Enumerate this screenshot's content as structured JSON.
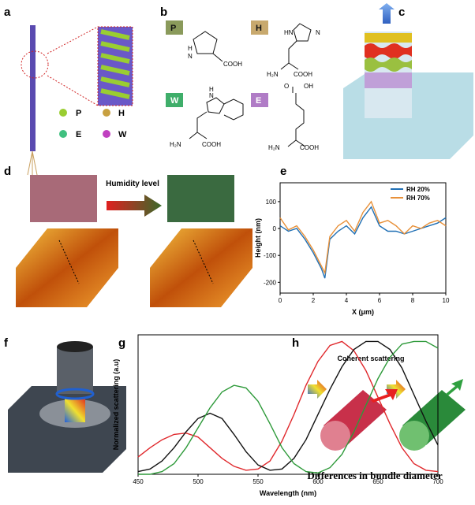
{
  "panel_labels": [
    "a",
    "b",
    "c",
    "d",
    "e",
    "f",
    "g",
    "h"
  ],
  "panel_a": {
    "legend": [
      "P",
      "H",
      "E",
      "W"
    ]
  },
  "panel_b": {
    "molecules": [
      {
        "letter": "P",
        "labels": [
          "H",
          "N",
          "COOH"
        ]
      },
      {
        "letter": "H",
        "labels": [
          "HN",
          "N",
          "H₂N",
          "COOH"
        ]
      },
      {
        "letter": "W",
        "labels": [
          "H",
          "N",
          "H₂N",
          "COOH"
        ]
      },
      {
        "letter": "E",
        "labels": [
          "O",
          "OH",
          "H₂N",
          "COOH"
        ]
      }
    ]
  },
  "panel_d": {
    "title": "Humidity level"
  },
  "panel_h": {
    "title": "Coherent scattering",
    "caption": "Differences in bundle diameter"
  },
  "chart_data": [
    {
      "type": "line",
      "xlabel": "X (μm)",
      "ylabel": "Height (nm)",
      "x": [
        0,
        0.5,
        1,
        1.5,
        2,
        2.5,
        2.7,
        3,
        3.5,
        4,
        4.5,
        5,
        5.5,
        6,
        6.5,
        7,
        7.5,
        8,
        8.5,
        9,
        9.5,
        10
      ],
      "series": [
        {
          "name": "RH 20%",
          "color": "#1f6fb4",
          "values": [
            10,
            -10,
            0,
            -40,
            -90,
            -150,
            -185,
            -40,
            -10,
            10,
            -20,
            40,
            80,
            10,
            -10,
            -10,
            -20,
            -10,
            0,
            10,
            20,
            40
          ]
        },
        {
          "name": "RH 70%",
          "color": "#e8913a",
          "values": [
            40,
            -5,
            10,
            -30,
            -80,
            -140,
            -165,
            -30,
            10,
            30,
            -10,
            60,
            100,
            20,
            30,
            10,
            -20,
            10,
            0,
            20,
            30,
            10
          ]
        }
      ],
      "xlim": [
        0,
        10
      ],
      "xticks": [
        0,
        2,
        4,
        6,
        8,
        10
      ],
      "ylim": [
        -240,
        170
      ],
      "yticks": [
        -200,
        -100,
        0,
        100
      ],
      "legend": "top-right"
    },
    {
      "type": "line",
      "xlabel": "Wavelength (nm)",
      "ylabel": "Normalized scattering (a.u)",
      "x": [
        450,
        460,
        470,
        480,
        490,
        500,
        510,
        520,
        530,
        540,
        550,
        560,
        570,
        580,
        590,
        600,
        610,
        620,
        630,
        640,
        650,
        660,
        670,
        680,
        690,
        700
      ],
      "series": [
        {
          "color": "#e0282c",
          "values": [
            0.13,
            0.2,
            0.26,
            0.3,
            0.31,
            0.28,
            0.2,
            0.12,
            0.06,
            0.03,
            0.04,
            0.1,
            0.25,
            0.45,
            0.67,
            0.85,
            0.97,
            1.0,
            0.93,
            0.78,
            0.58,
            0.38,
            0.2,
            0.08,
            0.03,
            0.02
          ]
        },
        {
          "color": "#111111",
          "values": [
            0.02,
            0.04,
            0.1,
            0.2,
            0.32,
            0.42,
            0.46,
            0.42,
            0.3,
            0.17,
            0.07,
            0.03,
            0.04,
            0.12,
            0.26,
            0.45,
            0.64,
            0.81,
            0.94,
            1.0,
            1.0,
            0.94,
            0.8,
            0.6,
            0.4,
            0.22
          ]
        },
        {
          "color": "#2e9a3a",
          "values": [
            0,
            0,
            0.02,
            0.08,
            0.2,
            0.35,
            0.5,
            0.62,
            0.67,
            0.65,
            0.55,
            0.38,
            0.2,
            0.08,
            0.02,
            0.01,
            0.05,
            0.15,
            0.32,
            0.52,
            0.72,
            0.88,
            0.98,
            1.0,
            1.0,
            0.95
          ]
        }
      ],
      "xlim": [
        450,
        700
      ],
      "xticks": [
        450,
        500,
        550,
        600,
        650,
        700
      ],
      "ylim": [
        0,
        1.05
      ]
    }
  ]
}
